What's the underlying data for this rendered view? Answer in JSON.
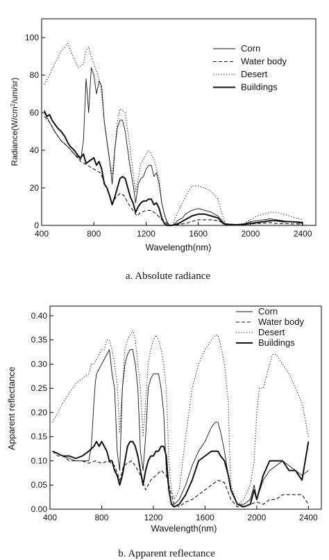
{
  "chart_data": [
    {
      "type": "line",
      "caption": "a. Absolute radiance",
      "xlabel": "Wavelength(nm)",
      "ylabel_main": "Radiance(W/cm",
      "ylabel_sup": "2",
      "ylabel_tail": "/um/sr)",
      "xlim": [
        400,
        2500
      ],
      "ylim": [
        0,
        110
      ],
      "xticks": [
        400,
        800,
        1200,
        1600,
        2000,
        2400
      ],
      "yticks": [
        0,
        20,
        40,
        60,
        80,
        100
      ],
      "xticklabels": [
        "400",
        "800",
        "1200",
        "1600",
        "2000",
        "2400"
      ],
      "yticklabels": [
        "0",
        "20",
        "40",
        "60",
        "80",
        "100"
      ],
      "legend_position": "top-right",
      "series": [
        {
          "name": "Corn",
          "style": "thin-solid",
          "x": [
            420,
            460,
            500,
            550,
            600,
            650,
            700,
            720,
            740,
            750,
            760,
            780,
            800,
            820,
            840,
            860,
            880,
            900,
            920,
            940,
            950,
            960,
            980,
            1000,
            1020,
            1040,
            1060,
            1080,
            1100,
            1120,
            1140,
            1160,
            1180,
            1200,
            1220,
            1240,
            1260,
            1280,
            1300,
            1320,
            1340,
            1360,
            1380,
            1400,
            1420,
            1450,
            1480,
            1500,
            1550,
            1600,
            1650,
            1700,
            1750,
            1790,
            1810,
            1830,
            1850,
            1900,
            1950,
            1980,
            2000,
            2050,
            2100,
            2150,
            2200,
            2250,
            2300,
            2350,
            2400
          ],
          "y": [
            60,
            55,
            50,
            45,
            42,
            38,
            35,
            45,
            78,
            70,
            60,
            84,
            80,
            70,
            77,
            74,
            55,
            45,
            35,
            22,
            30,
            40,
            52,
            56,
            56,
            50,
            40,
            30,
            22,
            12,
            22,
            25,
            26,
            30,
            32,
            32,
            26,
            28,
            22,
            12,
            6,
            2,
            0,
            0,
            1,
            3,
            4,
            6,
            8,
            9,
            8,
            7,
            5,
            2,
            0.5,
            0.3,
            0.3,
            0.5,
            0.8,
            1.5,
            2,
            2.5,
            3,
            3.5,
            3,
            2.5,
            2,
            1.5,
            1
          ]
        },
        {
          "name": "Water body",
          "style": "dashed",
          "x": [
            420,
            460,
            500,
            550,
            600,
            650,
            700,
            750,
            800,
            850,
            900,
            940,
            970,
            1000,
            1030,
            1060,
            1100,
            1130,
            1160,
            1200,
            1240,
            1280,
            1320,
            1360,
            1400,
            1450,
            1500,
            1550,
            1600,
            1650,
            1700,
            1750,
            1800,
            1850,
            1900,
            1950,
            2000,
            2050,
            2100,
            2150,
            2200,
            2250,
            2300,
            2350,
            2400
          ],
          "y": [
            58,
            55,
            50,
            45,
            42,
            38,
            34,
            32,
            30,
            28,
            20,
            12,
            15,
            17,
            16,
            12,
            8,
            5,
            7,
            8,
            8,
            6,
            3,
            1,
            0,
            0.5,
            1,
            2,
            3,
            3,
            3,
            2.5,
            1,
            0.5,
            0.3,
            0.5,
            0.8,
            1,
            1.2,
            1.5,
            1,
            1,
            0.8,
            0.8,
            0.5
          ]
        },
        {
          "name": "Desert",
          "style": "dotted",
          "x": [
            420,
            460,
            500,
            550,
            580,
            600,
            640,
            680,
            720,
            740,
            760,
            780,
            800,
            820,
            840,
            860,
            880,
            900,
            920,
            940,
            960,
            980,
            1000,
            1020,
            1040,
            1060,
            1080,
            1100,
            1120,
            1140,
            1160,
            1180,
            1200,
            1220,
            1240,
            1260,
            1280,
            1300,
            1320,
            1340,
            1360,
            1380,
            1400,
            1450,
            1500,
            1550,
            1600,
            1650,
            1700,
            1750,
            1790,
            1810,
            1850,
            1900,
            1950,
            2000,
            2050,
            2100,
            2150,
            2200,
            2250,
            2300,
            2350,
            2400
          ],
          "y": [
            75,
            80,
            86,
            93,
            95,
            97,
            90,
            84,
            86,
            93,
            95,
            90,
            86,
            82,
            78,
            70,
            55,
            45,
            35,
            27,
            40,
            55,
            62,
            61,
            60,
            50,
            40,
            28,
            18,
            25,
            33,
            35,
            38,
            40,
            38,
            35,
            30,
            25,
            12,
            6,
            1,
            0,
            0,
            8,
            15,
            21,
            21,
            20,
            18,
            14,
            4,
            1,
            0.5,
            0.5,
            1,
            3,
            5,
            6,
            7,
            7,
            6,
            5,
            4,
            3
          ]
        },
        {
          "name": "Buildings",
          "style": "thick-solid",
          "x": [
            420,
            440,
            460,
            480,
            500,
            520,
            550,
            580,
            600,
            620,
            650,
            680,
            700,
            720,
            740,
            760,
            780,
            800,
            820,
            840,
            860,
            880,
            900,
            920,
            940,
            960,
            980,
            1000,
            1020,
            1040,
            1060,
            1080,
            1100,
            1120,
            1140,
            1160,
            1180,
            1200,
            1220,
            1240,
            1260,
            1280,
            1300,
            1320,
            1340,
            1360,
            1400,
            1450,
            1500,
            1550,
            1600,
            1650,
            1700,
            1750,
            1790,
            1810,
            1850,
            1900,
            1950,
            2000,
            2050,
            2100,
            2150,
            2200,
            2250,
            2300,
            2350,
            2400
          ],
          "y": [
            61,
            58,
            59,
            56,
            54,
            52,
            50,
            47,
            44,
            42,
            40,
            37,
            36,
            38,
            33,
            34,
            35,
            36,
            32,
            34,
            30,
            22,
            20,
            16,
            11,
            15,
            20,
            25,
            26,
            25,
            20,
            15,
            12,
            7,
            10,
            12,
            13,
            13,
            14,
            14,
            11,
            12,
            9,
            4,
            1,
            0,
            0,
            1,
            3,
            5,
            6,
            6,
            5,
            4,
            1,
            0.5,
            0.5,
            0.3,
            0.5,
            1,
            1.5,
            2,
            2.5,
            2.5,
            2,
            2,
            1.8,
            1.5
          ]
        }
      ]
    },
    {
      "type": "line",
      "caption": "b. Apparent reflectance",
      "xlabel": "Wavelength(nm)",
      "ylabel": "Apparent reflectance",
      "xlim": [
        400,
        2500
      ],
      "ylim": [
        0,
        0.42
      ],
      "xticks": [
        400,
        800,
        1200,
        1600,
        2000,
        2400
      ],
      "yticks": [
        0,
        0.05,
        0.1,
        0.15,
        0.2,
        0.25,
        0.3,
        0.35,
        0.4
      ],
      "xticklabels": [
        "400",
        "800",
        "1200",
        "1600",
        "2000",
        "2400"
      ],
      "yticklabels": [
        "0.00",
        "0.05",
        "0.10",
        "0.15",
        "0.20",
        "0.25",
        "0.30",
        "0.35",
        "0.40"
      ],
      "legend_position": "top-right",
      "series": [
        {
          "name": "Corn",
          "style": "thin-solid",
          "x": [
            420,
            460,
            500,
            550,
            600,
            650,
            700,
            720,
            740,
            750,
            760,
            780,
            800,
            820,
            840,
            860,
            880,
            900,
            920,
            940,
            960,
            980,
            1000,
            1020,
            1040,
            1060,
            1080,
            1100,
            1120,
            1140,
            1160,
            1180,
            1200,
            1220,
            1240,
            1260,
            1280,
            1300,
            1320,
            1340,
            1360,
            1400,
            1450,
            1500,
            1550,
            1600,
            1650,
            1680,
            1700,
            1720,
            1750,
            1780,
            1800,
            1850,
            1900,
            1950,
            1980,
            2000,
            2050,
            2100,
            2150,
            2200,
            2250,
            2300,
            2350,
            2400
          ],
          "y": [
            0.12,
            0.115,
            0.11,
            0.105,
            0.1,
            0.1,
            0.1,
            0.13,
            0.22,
            0.26,
            0.28,
            0.29,
            0.3,
            0.31,
            0.32,
            0.33,
            0.28,
            0.25,
            0.12,
            0.08,
            0.25,
            0.3,
            0.32,
            0.33,
            0.33,
            0.3,
            0.25,
            0.12,
            0.08,
            0.15,
            0.25,
            0.27,
            0.28,
            0.28,
            0.28,
            0.25,
            0.2,
            0.08,
            0.04,
            0.01,
            0.01,
            0.02,
            0.05,
            0.09,
            0.12,
            0.14,
            0.17,
            0.18,
            0.18,
            0.16,
            0.12,
            0.07,
            0.04,
            0.01,
            0.01,
            0.02,
            0.05,
            0.02,
            0.06,
            0.08,
            0.09,
            0.1,
            0.09,
            0.08,
            0.07,
            0.08
          ]
        },
        {
          "name": "Water body",
          "style": "dashed",
          "x": [
            420,
            460,
            500,
            550,
            600,
            650,
            700,
            750,
            800,
            850,
            900,
            940,
            970,
            1000,
            1030,
            1060,
            1100,
            1140,
            1180,
            1220,
            1260,
            1300,
            1340,
            1360,
            1400,
            1450,
            1500,
            1550,
            1600,
            1650,
            1700,
            1750,
            1800,
            1850,
            1900,
            1950,
            2000,
            2050,
            2100,
            2150,
            2200,
            2250,
            2300,
            2350,
            2400
          ],
          "y": [
            0.12,
            0.11,
            0.11,
            0.1,
            0.1,
            0.1,
            0.095,
            0.1,
            0.095,
            0.1,
            0.09,
            0.06,
            0.09,
            0.095,
            0.1,
            0.09,
            0.07,
            0.04,
            0.06,
            0.07,
            0.08,
            0.07,
            0.03,
            0.01,
            0.005,
            0.015,
            0.02,
            0.03,
            0.04,
            0.05,
            0.06,
            0.055,
            0.02,
            0.005,
            0.005,
            0.01,
            0.015,
            0.01,
            0.02,
            0.02,
            0.03,
            0.03,
            0.03,
            0.03,
            0.01
          ]
        },
        {
          "name": "Desert",
          "style": "dotted",
          "x": [
            420,
            460,
            500,
            550,
            600,
            650,
            700,
            720,
            740,
            760,
            780,
            800,
            820,
            840,
            860,
            880,
            900,
            920,
            940,
            960,
            980,
            1000,
            1020,
            1040,
            1060,
            1080,
            1100,
            1120,
            1140,
            1160,
            1180,
            1200,
            1220,
            1240,
            1260,
            1280,
            1300,
            1320,
            1340,
            1360,
            1400,
            1450,
            1500,
            1550,
            1600,
            1650,
            1680,
            1700,
            1720,
            1750,
            1780,
            1790,
            1800,
            1850,
            1900,
            1950,
            1980,
            2000,
            2020,
            2050,
            2080,
            2100,
            2120,
            2150,
            2200,
            2250,
            2300,
            2350,
            2400
          ],
          "y": [
            0.18,
            0.2,
            0.22,
            0.24,
            0.26,
            0.27,
            0.28,
            0.3,
            0.3,
            0.31,
            0.32,
            0.33,
            0.33,
            0.35,
            0.35,
            0.33,
            0.3,
            0.26,
            0.16,
            0.25,
            0.33,
            0.35,
            0.36,
            0.37,
            0.35,
            0.3,
            0.25,
            0.15,
            0.22,
            0.3,
            0.33,
            0.35,
            0.36,
            0.35,
            0.33,
            0.3,
            0.25,
            0.1,
            0.04,
            0.02,
            0.04,
            0.15,
            0.25,
            0.3,
            0.33,
            0.35,
            0.36,
            0.36,
            0.34,
            0.3,
            0.22,
            0.12,
            0.05,
            0.01,
            0.02,
            0.05,
            0.1,
            0.2,
            0.25,
            0.25,
            0.28,
            0.3,
            0.32,
            0.32,
            0.3,
            0.28,
            0.25,
            0.22,
            0.15
          ]
        },
        {
          "name": "Buildings",
          "style": "thick-solid",
          "x": [
            420,
            460,
            500,
            550,
            600,
            650,
            700,
            740,
            760,
            780,
            800,
            820,
            840,
            860,
            880,
            900,
            920,
            940,
            960,
            980,
            1000,
            1020,
            1040,
            1060,
            1080,
            1100,
            1120,
            1140,
            1160,
            1180,
            1200,
            1220,
            1240,
            1260,
            1280,
            1300,
            1320,
            1340,
            1360,
            1400,
            1450,
            1500,
            1550,
            1600,
            1650,
            1680,
            1700,
            1720,
            1750,
            1780,
            1800,
            1850,
            1900,
            1950,
            1980,
            2000,
            2050,
            2100,
            2150,
            2200,
            2250,
            2300,
            2350,
            2400
          ],
          "y": [
            0.12,
            0.115,
            0.11,
            0.11,
            0.105,
            0.11,
            0.12,
            0.13,
            0.14,
            0.13,
            0.14,
            0.13,
            0.12,
            0.1,
            0.1,
            0.08,
            0.07,
            0.05,
            0.07,
            0.1,
            0.13,
            0.14,
            0.14,
            0.13,
            0.11,
            0.08,
            0.05,
            0.08,
            0.1,
            0.11,
            0.11,
            0.12,
            0.12,
            0.13,
            0.13,
            0.11,
            0.04,
            0.01,
            0.005,
            0.01,
            0.03,
            0.06,
            0.1,
            0.11,
            0.12,
            0.12,
            0.12,
            0.11,
            0.1,
            0.07,
            0.04,
            0.01,
            0.005,
            0.01,
            0.04,
            0.02,
            0.07,
            0.1,
            0.1,
            0.1,
            0.08,
            0.08,
            0.06,
            0.14
          ]
        }
      ]
    }
  ]
}
